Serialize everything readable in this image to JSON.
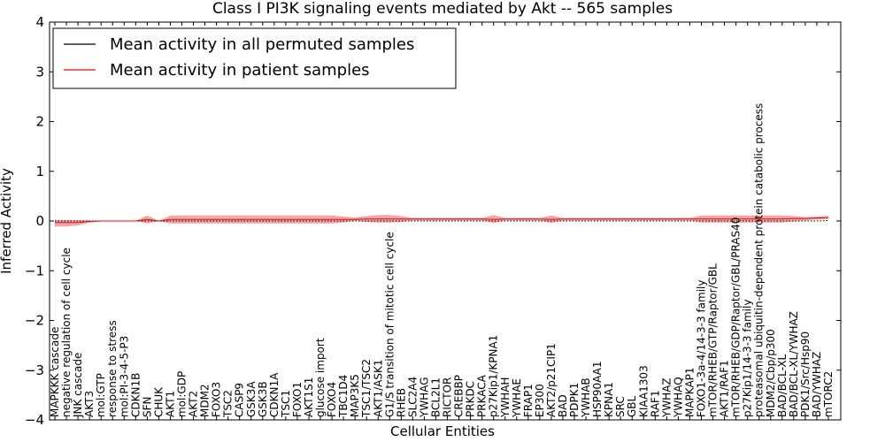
{
  "chart_data": {
    "type": "line",
    "title": "Class I PI3K signaling events mediated by Akt -- 565 samples",
    "xlabel": "Cellular Entities",
    "ylabel": "Inferred Activity",
    "ylim": [
      -4,
      4
    ],
    "yticks": [
      -4,
      -3,
      -2,
      -1,
      0,
      1,
      2,
      3,
      4
    ],
    "ytick_labels": [
      "−4",
      "−3",
      "−2",
      "−1",
      "0",
      "1",
      "2",
      "3",
      "4"
    ],
    "legend": {
      "position": "top-left",
      "entries": [
        {
          "label": "Mean activity in all permuted samples",
          "color": "#000000"
        },
        {
          "label": "Mean activity in patient samples",
          "color": "#ff0000"
        }
      ]
    },
    "colors": {
      "permuted": "#000000",
      "patient": "#ff0000",
      "band": "#e8898c"
    },
    "categories": [
      "MAPKKK cascade",
      "negative regulation of cell cycle",
      "JNK cascade",
      "AKT3",
      "mol:GTP",
      "response to stress",
      "mol:PI-3-4-5-P3",
      "CDKN1B",
      "SFN",
      "CHUK",
      "AKT1",
      "mol:GDP",
      "AKT2",
      "MDM2",
      "FOXO3",
      "TSC2",
      "CASP9",
      "GSK3A",
      "GSK3B",
      "CDKN1A",
      "TSC1",
      "FOXO1",
      "AKT1S1",
      "glucose import",
      "FOXO4",
      "TBC1D4",
      "MAP3K5",
      "TSC1/TSC2",
      "AKT1/ASK1",
      "G1/S transition of mitotic cell cycle",
      "RHEB",
      "SLC2A4",
      "YWHAG",
      "BCL2L1",
      "RICTOR",
      "CREBBP",
      "PRKDC",
      "PRKACA",
      "p27Kip1/KPNA1",
      "YWHAH",
      "YWHAE",
      "FRAP1",
      "EP300",
      "AKT2/p21CIP1",
      "BAD",
      "PDPK1",
      "YWHAB",
      "HSP90AA1",
      "KPNA1",
      "SRC",
      "GBL",
      "KIAA1303",
      "RAF1",
      "YWHAZ",
      "YWHAQ",
      "MAPKAP1",
      "FOXO1-3a-4/14-3-3 family",
      "mTOR/RHEB/GTP/Raptor/GBL",
      "AKT1/RAF1",
      "mTOR/RHEB/GDP/Raptor/GBL/PRAS40",
      "p27Kip1/14-3-3 family",
      "proteasomal ubiquitin-dependent protein catabolic process",
      "MDM2/Cbp/p300",
      "BAD/BCL-XL",
      "BAD/BCL-XL/YWHAZ",
      "PDK1/Src/Hsp90",
      "BAD/YWHAZ",
      "mTORC2"
    ],
    "series": [
      {
        "name": "Mean activity in patient samples",
        "values": [
          -0.03,
          -0.03,
          -0.03,
          -0.01,
          0,
          0,
          0,
          0,
          0.03,
          0,
          0.03,
          0.03,
          0.03,
          0.03,
          0.03,
          0.03,
          0.03,
          0.03,
          0.03,
          0.03,
          0.03,
          0.03,
          0.03,
          0.03,
          0.03,
          0.03,
          0.03,
          0.04,
          0.04,
          0.04,
          0.04,
          0.04,
          0.04,
          0.04,
          0.04,
          0.04,
          0.04,
          0.04,
          0.03,
          0.04,
          0.04,
          0.04,
          0.04,
          0.03,
          0.04,
          0.04,
          0.04,
          0.04,
          0.04,
          0.04,
          0.04,
          0.04,
          0.04,
          0.04,
          0.04,
          0.04,
          0.04,
          0.04,
          0.04,
          0.04,
          0.04,
          0.04,
          0.04,
          0.04,
          0.05,
          0.05,
          0.06,
          0.07
        ],
        "lower": [
          -0.11,
          -0.11,
          -0.09,
          -0.03,
          -0.01,
          0,
          0,
          0,
          -0.05,
          0,
          -0.05,
          -0.05,
          -0.05,
          -0.05,
          -0.05,
          -0.05,
          -0.05,
          -0.05,
          -0.05,
          -0.05,
          -0.05,
          -0.05,
          -0.05,
          -0.05,
          -0.05,
          -0.03,
          0.01,
          -0.02,
          -0.03,
          -0.03,
          -0.02,
          0.01,
          0.01,
          0.01,
          0.01,
          0.01,
          0.01,
          0.01,
          -0.04,
          0.01,
          0.01,
          0.01,
          0.01,
          -0.04,
          0.01,
          0.01,
          0.01,
          0.01,
          0.01,
          0.01,
          0.01,
          0.01,
          0.01,
          0.01,
          0.01,
          0.01,
          -0.03,
          -0.03,
          -0.03,
          -0.03,
          -0.03,
          -0.03,
          -0.03,
          -0.03,
          -0.01,
          0.01,
          0.03,
          0.04
        ],
        "upper": [
          0.02,
          0.02,
          0.02,
          0.01,
          0.01,
          0,
          0,
          0,
          0.11,
          0,
          0.11,
          0.11,
          0.11,
          0.11,
          0.11,
          0.11,
          0.11,
          0.11,
          0.11,
          0.11,
          0.11,
          0.11,
          0.11,
          0.11,
          0.11,
          0.09,
          0.07,
          0.1,
          0.12,
          0.12,
          0.1,
          0.06,
          0.06,
          0.06,
          0.06,
          0.06,
          0.06,
          0.06,
          0.12,
          0.06,
          0.06,
          0.06,
          0.06,
          0.11,
          0.06,
          0.06,
          0.06,
          0.06,
          0.06,
          0.06,
          0.06,
          0.06,
          0.06,
          0.06,
          0.06,
          0.06,
          0.11,
          0.11,
          0.11,
          0.11,
          0.11,
          0.11,
          0.11,
          0.11,
          0.1,
          0.08,
          0.09,
          0.1
        ]
      },
      {
        "name": "Mean activity in all permuted samples",
        "values": [
          0,
          0,
          0,
          0,
          0,
          0,
          0,
          0,
          0,
          0,
          0,
          0,
          0,
          0,
          0,
          0,
          0,
          0,
          0,
          0,
          0,
          0,
          0,
          0,
          0,
          0,
          0,
          0,
          0,
          0,
          0,
          0,
          0,
          0,
          0,
          0,
          0,
          0,
          0,
          0,
          0,
          0,
          0,
          0,
          0,
          0,
          0,
          0,
          0,
          0,
          0,
          0,
          0,
          0,
          0,
          0,
          0,
          0,
          0,
          0,
          0,
          0,
          0,
          0,
          0,
          0,
          0,
          0.01
        ]
      }
    ]
  }
}
